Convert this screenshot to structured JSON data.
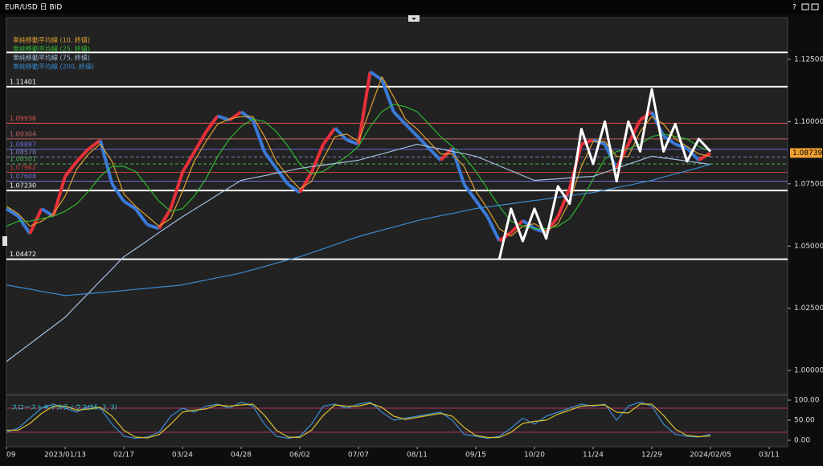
{
  "window": {
    "title": "EUR/USD 日 BID",
    "help": "?"
  },
  "chart_data": [
    {
      "type": "line",
      "categories": [
        "09",
        null,
        null,
        null,
        null,
        "2023/01/13",
        null,
        null,
        null,
        null,
        "02/17",
        null,
        null,
        null,
        null,
        "03/24",
        null,
        null,
        null,
        null,
        "04/28",
        null,
        null,
        null,
        null,
        "06/02",
        null,
        null,
        null,
        null,
        "07/07",
        null,
        null,
        null,
        null,
        "08/11",
        null,
        null,
        null,
        null,
        "09/15",
        null,
        null,
        null,
        null,
        "10/20",
        null,
        null,
        null,
        null,
        "11/24",
        null,
        null,
        null,
        null,
        "12/29",
        null,
        null,
        null,
        null,
        "2024/02/05",
        null,
        null,
        null,
        null,
        "03/11",
        null
      ],
      "series": [
        {
          "color_up": "#e8303a",
          "color_down": "#3a7ad8",
          "values": [
            1.065,
            1.062,
            1.055,
            1.065,
            1.062,
            1.078,
            1.084,
            1.089,
            1.0925,
            1.075,
            1.068,
            1.065,
            1.0586,
            1.057,
            1.065,
            1.0796,
            1.0877,
            1.0958,
            1.1023,
            1.1006,
            1.1039,
            1.1006,
            1.0877,
            1.0812,
            1.0748,
            1.0715,
            1.0796,
            1.0909,
            1.0974,
            1.0926,
            1.0909,
            1.12,
            1.1168,
            1.1039,
            1.099,
            1.0942,
            1.0893,
            1.0845,
            1.0893,
            1.0748,
            1.0683,
            1.0618,
            1.0521,
            1.0554,
            1.0602,
            1.057,
            1.0554,
            1.0618,
            1.0732,
            1.0909,
            1.0926,
            1.0909,
            1.0812,
            1.0909,
            1.1006,
            1.1039,
            1.0942,
            1.0909,
            1.0893,
            1.0845,
            1.0874,
            null,
            null,
            null,
            null,
            null,
            null
          ]
        },
        {
          "name": "単純移動平均線 (10, 終値)",
          "color": "#e0a030",
          "values": [
            1.066,
            1.063,
            1.058,
            1.06,
            1.063,
            1.07,
            1.081,
            1.087,
            1.091,
            1.084,
            1.071,
            1.066,
            1.062,
            1.058,
            1.061,
            1.072,
            1.084,
            1.092,
            1.099,
            1.101,
            1.102,
            1.102,
            1.094,
            1.084,
            1.078,
            1.073,
            1.076,
            1.085,
            1.094,
            1.095,
            1.092,
            1.105,
            1.118,
            1.11,
            1.101,
            1.097,
            1.092,
            1.087,
            1.087,
            1.082,
            1.072,
            1.065,
            1.057,
            1.054,
            1.058,
            1.059,
            1.056,
            1.059,
            1.068,
            1.082,
            1.092,
            1.092,
            1.086,
            1.086,
            1.096,
            1.102,
            1.099,
            1.093,
            1.09,
            1.087,
            1.086,
            null,
            null,
            null,
            null,
            null,
            null
          ]
        },
        {
          "name": "単純移動平均線 (25, 終値)",
          "color": "#2fb82f",
          "values": [
            1.058,
            1.06,
            1.06,
            1.061,
            1.062,
            1.064,
            1.067,
            1.072,
            1.078,
            1.082,
            1.082,
            1.08,
            1.074,
            1.068,
            1.064,
            1.065,
            1.07,
            1.077,
            1.086,
            1.093,
            1.098,
            1.101,
            1.1,
            1.096,
            1.09,
            1.083,
            1.079,
            1.08,
            1.083,
            1.086,
            1.09,
            1.098,
            1.104,
            1.107,
            1.106,
            1.104,
            1.099,
            1.094,
            1.09,
            1.086,
            1.08,
            1.073,
            1.066,
            1.06,
            1.058,
            1.057,
            1.057,
            1.058,
            1.061,
            1.068,
            1.077,
            1.085,
            1.088,
            1.089,
            1.091,
            1.094,
            1.095,
            1.094,
            1.093,
            1.09,
            1.088,
            null,
            null,
            null,
            null,
            null,
            null
          ]
        },
        {
          "name": "単純移動平均線 (75, 終値)",
          "color": "#9fbcdc",
          "values": [
            1.0036,
            1.0072,
            1.0107,
            1.0143,
            1.0178,
            1.0214,
            1.0263,
            1.0311,
            1.036,
            1.0408,
            1.0457,
            1.0489,
            1.0521,
            1.0554,
            1.0586,
            1.0618,
            1.0647,
            1.0676,
            1.0706,
            1.0735,
            1.0764,
            1.0774,
            1.0783,
            1.0793,
            1.0802,
            1.0812,
            1.0819,
            1.0825,
            1.0832,
            1.0838,
            1.0845,
            1.0858,
            1.087,
            1.0883,
            1.0896,
            1.0909,
            1.0899,
            1.089,
            1.088,
            1.0871,
            1.0861,
            1.0842,
            1.0822,
            1.0803,
            1.0783,
            1.0764,
            1.0767,
            1.077,
            1.0774,
            1.0777,
            1.078,
            1.0796,
            1.0812,
            1.0829,
            1.0845,
            1.0861,
            1.0854,
            1.0848,
            1.0841,
            1.0835,
            1.0828,
            null,
            null,
            null,
            null,
            null,
            null
          ]
        },
        {
          "name": "単純移動平均線 (200, 終値)",
          "color": "#3a8ad0",
          "values": [
            1.0344,
            1.0335,
            1.0327,
            1.0318,
            1.031,
            1.0301,
            1.0305,
            1.0309,
            1.0313,
            1.0317,
            1.0321,
            1.0326,
            1.033,
            1.0335,
            1.0339,
            1.0344,
            1.0354,
            1.0363,
            1.0373,
            1.0382,
            1.0392,
            1.0405,
            1.0418,
            1.0431,
            1.0444,
            1.0457,
            1.0473,
            1.0489,
            1.0506,
            1.0522,
            1.0538,
            1.0551,
            1.0564,
            1.0576,
            1.0589,
            1.0602,
            1.0612,
            1.0622,
            1.0631,
            1.0641,
            1.0651,
            1.0657,
            1.0664,
            1.067,
            1.0677,
            1.0683,
            1.0689,
            1.0696,
            1.0702,
            1.0709,
            1.0715,
            1.0725,
            1.0735,
            1.0744,
            1.0754,
            1.0764,
            1.0777,
            1.079,
            1.0802,
            1.0815,
            1.0828,
            null,
            null,
            null,
            null,
            null,
            null
          ]
        },
        {
          "color": "#ffffff",
          "width": 3,
          "values": [
            null,
            null,
            null,
            null,
            null,
            null,
            null,
            null,
            null,
            null,
            null,
            null,
            null,
            null,
            null,
            null,
            null,
            null,
            null,
            null,
            null,
            null,
            null,
            null,
            null,
            null,
            null,
            null,
            null,
            null,
            null,
            null,
            null,
            null,
            null,
            null,
            null,
            null,
            null,
            null,
            null,
            null,
            1.0447,
            1.065,
            1.052,
            1.065,
            1.053,
            1.074,
            1.067,
            1.097,
            1.083,
            1.1,
            1.076,
            1.1,
            1.088,
            1.113,
            1.088,
            1.099,
            1.084,
            1.093,
            1.088,
            null,
            null,
            null,
            null,
            null,
            null
          ]
        }
      ],
      "levels": [
        {
          "value": 1.1278,
          "color": "#ffffff"
        },
        {
          "value": 1.11401,
          "label": "1.11401",
          "color": "#ffffff"
        },
        {
          "value": 1.09936,
          "label": "1.09936",
          "color": "#e05050"
        },
        {
          "value": 1.09304,
          "label": "1.09304",
          "color": "#c86464"
        },
        {
          "value": 1.08887,
          "label": "1.08887",
          "color": "#6a6ad8"
        },
        {
          "value": 1.08578,
          "label": "1.08578",
          "color": "#8080c0",
          "dashed": true
        },
        {
          "value": 1.08301,
          "label": "1.08301",
          "color": "#4caf50",
          "dashed": true
        },
        {
          "value": 1.07962,
          "label": "1.07962",
          "color": "#c04040"
        },
        {
          "value": 1.07608,
          "label": "1.07608",
          "color": "#7070d0"
        },
        {
          "value": 1.0723,
          "label": "1.07230",
          "color": "#ffffff"
        },
        {
          "value": 1.04472,
          "label": "1.04472",
          "color": "#ffffff"
        }
      ],
      "last_price": 1.08739,
      "ylim": [
        0.9907,
        1.1411
      ],
      "yticks": [
        {
          "value": 1.0,
          "label": "1.00000"
        },
        {
          "value": 1.025,
          "label": "1.02500"
        },
        {
          "value": 1.05,
          "label": "1.05000"
        },
        {
          "value": 1.075,
          "label": "1.07500"
        },
        {
          "value": 1.1,
          "label": "1.10000"
        },
        {
          "value": 1.125,
          "label": "1.12500"
        }
      ],
      "grid": false
    },
    {
      "type": "line",
      "title": "スローストキャスティクス(15, 3, 3)",
      "series": [
        {
          "color": "#3a8ad0",
          "values": [
            20,
            30,
            55,
            80,
            90,
            80,
            70,
            85,
            80,
            40,
            10,
            5,
            8,
            20,
            60,
            80,
            70,
            85,
            90,
            80,
            95,
            85,
            40,
            10,
            5,
            10,
            40,
            85,
            90,
            80,
            90,
            95,
            70,
            50,
            55,
            60,
            65,
            70,
            50,
            15,
            10,
            5,
            10,
            30,
            55,
            40,
            60,
            70,
            80,
            90,
            85,
            90,
            50,
            85,
            95,
            85,
            40,
            15,
            10,
            8,
            15,
            null,
            null,
            null,
            null,
            null,
            null
          ]
        },
        {
          "color": "#d8c030",
          "values": [
            25,
            25,
            42,
            67,
            85,
            85,
            75,
            78,
            82,
            60,
            25,
            8,
            6,
            14,
            40,
            70,
            75,
            78,
            88,
            85,
            88,
            90,
            62,
            25,
            8,
            7,
            25,
            62,
            88,
            85,
            85,
            92,
            82,
            60,
            52,
            57,
            62,
            67,
            60,
            32,
            12,
            7,
            7,
            20,
            42,
            47,
            50,
            65,
            75,
            85,
            87,
            88,
            70,
            68,
            90,
            90,
            62,
            28,
            12,
            9,
            11,
            null,
            null,
            null,
            null,
            null,
            null
          ]
        }
      ],
      "levels": [
        {
          "value": 80,
          "color": "#b03060"
        },
        {
          "value": 20,
          "color": "#b03060"
        }
      ],
      "ylim": [
        -14,
        110
      ],
      "yticks": [
        {
          "value": 0,
          "label": "0.00"
        },
        {
          "value": 50,
          "label": "50.00"
        },
        {
          "value": 100,
          "label": "100.00"
        }
      ],
      "grid": false
    }
  ]
}
